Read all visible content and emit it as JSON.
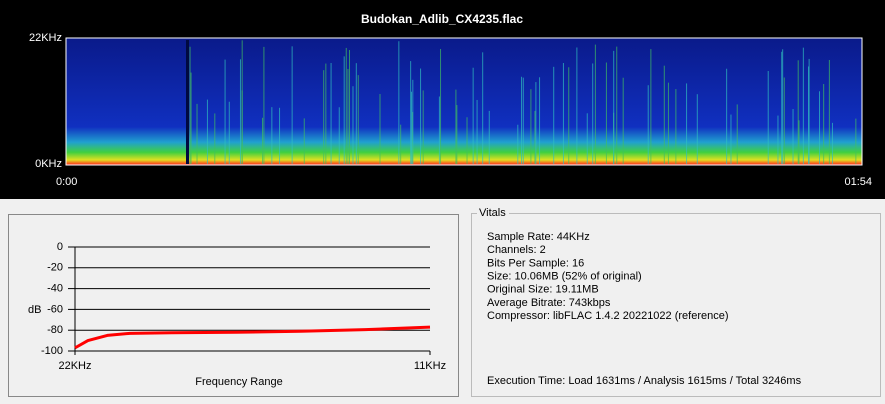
{
  "spectrogram": {
    "title": "Budokan_Adlib_CX4235.flac",
    "y_labels": [
      "22KHz",
      "0KHz"
    ],
    "x_labels": [
      "0:00",
      "01:54"
    ]
  },
  "chart_data": {
    "type": "line",
    "xlabel": "Frequency Range",
    "ylabel": "dB",
    "x": [
      22,
      21.6,
      21,
      20.3,
      19,
      17,
      15,
      13,
      11
    ],
    "series": [
      {
        "color": "#ff0000",
        "values": [
          -97,
          -90,
          -85,
          -83,
          -82.5,
          -82,
          -81,
          -79.5,
          -77
        ]
      }
    ],
    "xlim": [
      22,
      11
    ],
    "xticks": [
      {
        "value": 22,
        "label": "22KHz"
      },
      {
        "value": 11,
        "label": "11KHz"
      }
    ],
    "ylim": [
      -100,
      0
    ],
    "yticks": [
      0,
      -20,
      -40,
      -60,
      -80,
      -100
    ],
    "grid": true
  },
  "vitals": {
    "title": "Vitals",
    "lines": [
      "Sample Rate: 44KHz",
      "Channels: 2",
      "Bits Per Sample: 16",
      "Size: 10.06MB (52% of original)",
      "Original Size: 19.11MB",
      "Average Bitrate: 743kbps",
      "Compressor: libFLAC 1.4.2 20221022 (reference)"
    ],
    "execution": "Execution Time: Load 1631ms / Analysis 1615ms / Total 3246ms"
  }
}
